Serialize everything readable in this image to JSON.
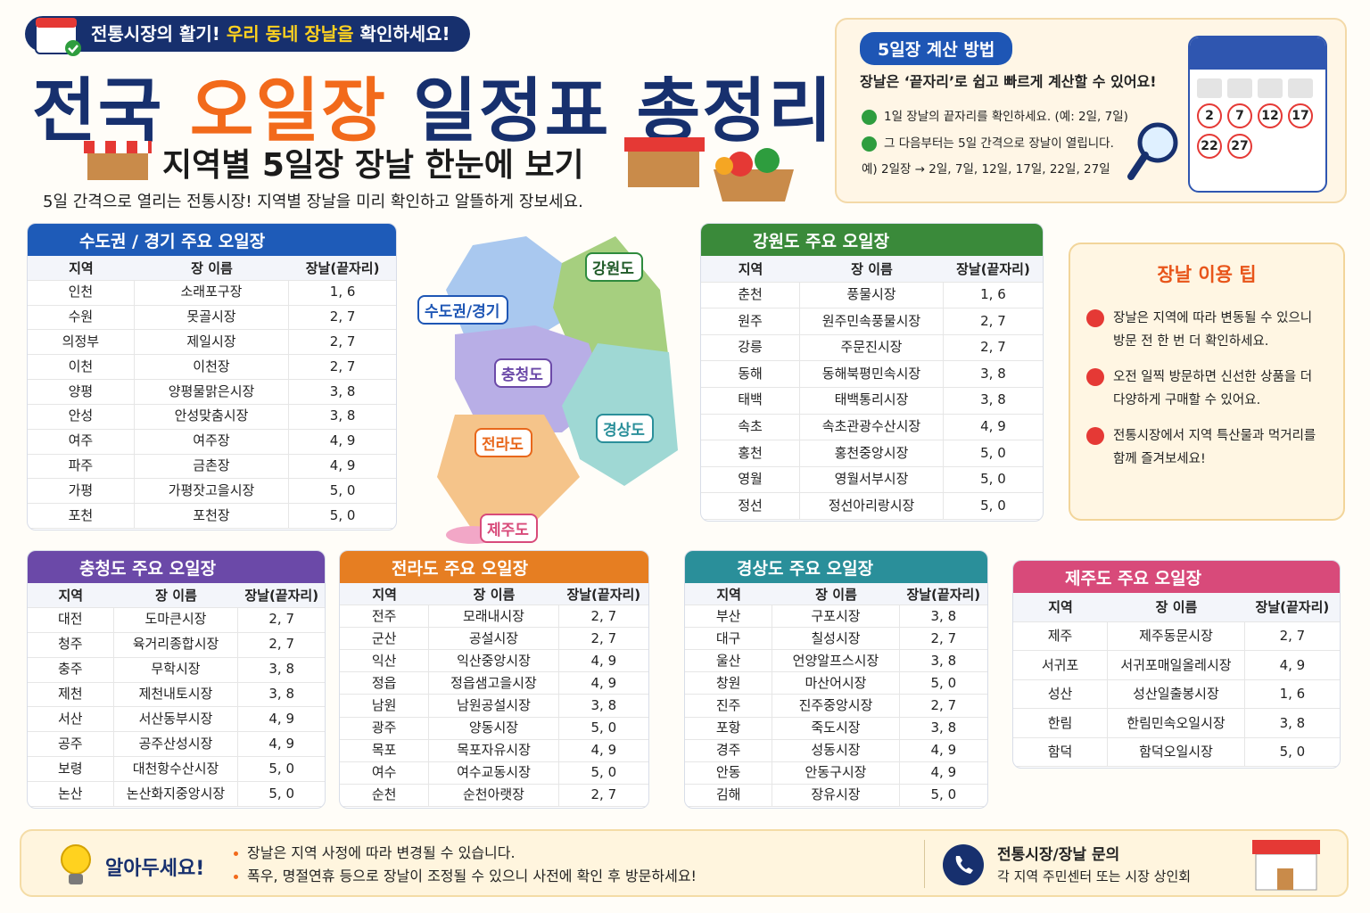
{
  "header": {
    "badge": [
      "전통시장의 활기! ",
      "우리 동네 장날을",
      " 확인하세요!"
    ],
    "title": [
      "전국 ",
      "오일장",
      " 일정표 총정리"
    ],
    "subtitle": "지역별 5일장 장날 한눈에 보기",
    "description": "5일 간격으로 열리는 전통시장! 지역별 장날을 미리 확인하고 알뜰하게 장보세요."
  },
  "calc": {
    "title": "5일장 계산 방법",
    "intro": "장날은 ‘끝자리’로 쉽고 빠르게 계산할 수 있어요!",
    "items": [
      "1일 장날의 끝자리를 확인하세요. (예: 2일, 7일)",
      "그 다음부터는 5일 간격으로 장날이 열립니다."
    ],
    "example": "예) 2일장 → 2일, 7일, 12일, 17일, 22일, 27일",
    "calendar": [
      "2",
      "7",
      "12",
      "17",
      "22",
      "27"
    ]
  },
  "map": {
    "labels": [
      "강원도",
      "수도권/경기",
      "충청도",
      "전라도",
      "경상도",
      "제주도"
    ]
  },
  "tables": {
    "sudo": {
      "title": "수도권 / 경기 주요 오일장",
      "columns": [
        "지역",
        "장 이름",
        "장날(끝자리)"
      ],
      "rows": [
        [
          "인천",
          "소래포구장",
          "1, 6"
        ],
        [
          "수원",
          "못골시장",
          "2, 7"
        ],
        [
          "의정부",
          "제일시장",
          "2, 7"
        ],
        [
          "이천",
          "이천장",
          "2, 7"
        ],
        [
          "양평",
          "양평물맑은시장",
          "3, 8"
        ],
        [
          "안성",
          "안성맞춤시장",
          "3, 8"
        ],
        [
          "여주",
          "여주장",
          "4, 9"
        ],
        [
          "파주",
          "금촌장",
          "4, 9"
        ],
        [
          "가평",
          "가평잣고을시장",
          "5, 0"
        ],
        [
          "포천",
          "포천장",
          "5, 0"
        ]
      ]
    },
    "gangwon": {
      "title": "강원도 주요 오일장",
      "columns": [
        "지역",
        "장 이름",
        "장날(끝자리)"
      ],
      "rows": [
        [
          "춘천",
          "풍물시장",
          "1, 6"
        ],
        [
          "원주",
          "원주민속풍물시장",
          "2, 7"
        ],
        [
          "강릉",
          "주문진시장",
          "2, 7"
        ],
        [
          "동해",
          "동해북평민속시장",
          "3, 8"
        ],
        [
          "태백",
          "태백통리시장",
          "3, 8"
        ],
        [
          "속초",
          "속초관광수산시장",
          "4, 9"
        ],
        [
          "홍천",
          "홍천중앙시장",
          "5, 0"
        ],
        [
          "영월",
          "영월서부시장",
          "5, 0"
        ],
        [
          "정선",
          "정선아리랑시장",
          "5, 0"
        ]
      ]
    },
    "chungcheong": {
      "title": "충청도 주요 오일장",
      "columns": [
        "지역",
        "장 이름",
        "장날(끝자리)"
      ],
      "rows": [
        [
          "대전",
          "도마큰시장",
          "2, 7"
        ],
        [
          "청주",
          "육거리종합시장",
          "2, 7"
        ],
        [
          "충주",
          "무학시장",
          "3, 8"
        ],
        [
          "제천",
          "제천내토시장",
          "3, 8"
        ],
        [
          "서산",
          "서산동부시장",
          "4, 9"
        ],
        [
          "공주",
          "공주산성시장",
          "4, 9"
        ],
        [
          "보령",
          "대천항수산시장",
          "5, 0"
        ],
        [
          "논산",
          "논산화지중앙시장",
          "5, 0"
        ]
      ]
    },
    "jeolla": {
      "title": "전라도 주요 오일장",
      "columns": [
        "지역",
        "장 이름",
        "장날(끝자리)"
      ],
      "rows": [
        [
          "전주",
          "모래내시장",
          "2, 7"
        ],
        [
          "군산",
          "공설시장",
          "2, 7"
        ],
        [
          "익산",
          "익산중앙시장",
          "4, 9"
        ],
        [
          "정읍",
          "정읍샘고을시장",
          "4, 9"
        ],
        [
          "남원",
          "남원공설시장",
          "3, 8"
        ],
        [
          "광주",
          "양동시장",
          "5, 0"
        ],
        [
          "목포",
          "목포자유시장",
          "4, 9"
        ],
        [
          "여수",
          "여수교동시장",
          "5, 0"
        ],
        [
          "순천",
          "순천아랫장",
          "2, 7"
        ]
      ]
    },
    "gyeongsang": {
      "title": "경상도 주요 오일장",
      "columns": [
        "지역",
        "장 이름",
        "장날(끝자리)"
      ],
      "rows": [
        [
          "부산",
          "구포시장",
          "3, 8"
        ],
        [
          "대구",
          "칠성시장",
          "2, 7"
        ],
        [
          "울산",
          "언양알프스시장",
          "3, 8"
        ],
        [
          "창원",
          "마산어시장",
          "5, 0"
        ],
        [
          "진주",
          "진주중앙시장",
          "2, 7"
        ],
        [
          "포항",
          "죽도시장",
          "3, 8"
        ],
        [
          "경주",
          "성동시장",
          "4, 9"
        ],
        [
          "안동",
          "안동구시장",
          "4, 9"
        ],
        [
          "김해",
          "장유시장",
          "5, 0"
        ]
      ]
    },
    "jeju": {
      "title": "제주도 주요 오일장",
      "columns": [
        "지역",
        "장 이름",
        "장날(끝자리)"
      ],
      "rows": [
        [
          "제주",
          "제주동문시장",
          "2, 7"
        ],
        [
          "서귀포",
          "서귀포매일올레시장",
          "4, 9"
        ],
        [
          "성산",
          "성산일출봉시장",
          "1, 6"
        ],
        [
          "한림",
          "한림민속오일시장",
          "3, 8"
        ],
        [
          "함덕",
          "함덕오일시장",
          "5, 0"
        ]
      ]
    }
  },
  "tips": {
    "title": "장날 이용 팁",
    "items": [
      "장날은 지역에 따라 변동될 수 있으니 방문 전 한 번 더 확인하세요.",
      "오전 일찍 방문하면 신선한 상품을 더 다양하게 구매할 수 있어요.",
      "전통시장에서 지역 특산물과 먹거리를 함께 즐겨보세요!"
    ]
  },
  "footer": {
    "note_title": "알아두세요!",
    "notes": [
      "장날은 지역 사정에 따라 변경될 수 있습니다.",
      "폭우, 명절연휴 등으로 장날이 조정될 수 있으니 사전에 확인 후 방문하세요!"
    ],
    "contact_title": "전통시장/장날 문의",
    "contact": "각 지역 주민센터 또는 시장 상인회"
  }
}
